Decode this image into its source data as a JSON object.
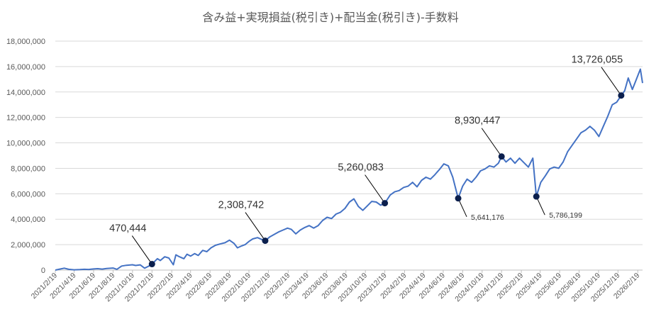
{
  "colors": {
    "series": "#4472c4",
    "marker": "#0b1f4d",
    "grid": "#d9d9d9",
    "axis_text": "#595959",
    "background": "#ffffff"
  },
  "chart_data": {
    "type": "line",
    "title": "含み益+実現損益(税引き)+配当金(税引き)-手数料",
    "xlabel": "",
    "ylabel": "",
    "ylim": [
      0,
      18000000
    ],
    "y_ticks": [
      "0",
      "2,000,000",
      "4,000,000",
      "6,000,000",
      "8,000,000",
      "10,000,000",
      "12,000,000",
      "14,000,000",
      "16,000,000",
      "18,000,000"
    ],
    "x_ticks": [
      "2021/2/19",
      "2021/4/19",
      "2021/6/19",
      "2021/8/19",
      "2021/10/19",
      "2021/12/19",
      "2022/2/19",
      "2022/4/19",
      "2022/6/19",
      "2022/8/19",
      "2022/10/19",
      "2022/12/19",
      "2023/2/19",
      "2023/4/19",
      "2023/6/19",
      "2023/8/19",
      "2023/10/19",
      "2023/12/19",
      "2024/2/19",
      "2024/4/19",
      "2024/6/19",
      "2024/8/19",
      "2024/10/19",
      "2024/12/19",
      "2025/2/19",
      "2025/4/19",
      "2025/6/19",
      "2025/8/19",
      "2025/10/19",
      "2025/12/19",
      "2026/2/19"
    ],
    "grid": true,
    "legend": "none",
    "series": [
      {
        "points": [
          [
            "2021-02-19",
            0
          ],
          [
            "2021-03-05",
            80000
          ],
          [
            "2021-03-19",
            150000
          ],
          [
            "2021-04-02",
            60000
          ],
          [
            "2021-04-19",
            20000
          ],
          [
            "2021-05-07",
            40000
          ],
          [
            "2021-05-21",
            60000
          ],
          [
            "2021-06-04",
            50000
          ],
          [
            "2021-06-19",
            90000
          ],
          [
            "2021-07-02",
            110000
          ],
          [
            "2021-07-16",
            80000
          ],
          [
            "2021-07-30",
            130000
          ],
          [
            "2021-08-19",
            160000
          ],
          [
            "2021-08-31",
            60000
          ],
          [
            "2021-09-15",
            320000
          ],
          [
            "2021-09-30",
            380000
          ],
          [
            "2021-10-19",
            420000
          ],
          [
            "2021-10-29",
            360000
          ],
          [
            "2021-11-12",
            410000
          ],
          [
            "2021-11-26",
            150000
          ],
          [
            "2021-12-08",
            300000
          ],
          [
            "2021-12-19",
            470444
          ],
          [
            "2022-01-05",
            900000
          ],
          [
            "2022-01-14",
            750000
          ],
          [
            "2022-01-28",
            1050000
          ],
          [
            "2022-02-10",
            950000
          ],
          [
            "2022-02-24",
            420000
          ],
          [
            "2022-03-04",
            1200000
          ],
          [
            "2022-03-15",
            1050000
          ],
          [
            "2022-03-29",
            900000
          ],
          [
            "2022-04-08",
            1250000
          ],
          [
            "2022-04-19",
            1100000
          ],
          [
            "2022-05-02",
            1300000
          ],
          [
            "2022-05-13",
            1150000
          ],
          [
            "2022-05-27",
            1550000
          ],
          [
            "2022-06-09",
            1450000
          ],
          [
            "2022-06-22",
            1750000
          ],
          [
            "2022-07-06",
            1950000
          ],
          [
            "2022-07-20",
            2050000
          ],
          [
            "2022-08-05",
            2150000
          ],
          [
            "2022-08-19",
            2350000
          ],
          [
            "2022-09-02",
            2100000
          ],
          [
            "2022-09-13",
            1750000
          ],
          [
            "2022-09-26",
            1900000
          ],
          [
            "2022-10-07",
            2000000
          ],
          [
            "2022-10-19",
            2250000
          ],
          [
            "2022-10-31",
            2450000
          ],
          [
            "2022-11-15",
            2550000
          ],
          [
            "2022-11-29",
            2400000
          ],
          [
            "2022-12-09",
            2308742
          ],
          [
            "2022-12-23",
            2600000
          ],
          [
            "2023-01-06",
            2800000
          ],
          [
            "2023-01-20",
            3000000
          ],
          [
            "2023-02-03",
            3150000
          ],
          [
            "2023-02-17",
            3300000
          ],
          [
            "2023-03-01",
            3200000
          ],
          [
            "2023-03-15",
            2850000
          ],
          [
            "2023-03-29",
            3150000
          ],
          [
            "2023-04-12",
            3350000
          ],
          [
            "2023-04-26",
            3500000
          ],
          [
            "2023-05-10",
            3300000
          ],
          [
            "2023-05-24",
            3500000
          ],
          [
            "2023-06-07",
            3900000
          ],
          [
            "2023-06-21",
            4150000
          ],
          [
            "2023-07-05",
            4050000
          ],
          [
            "2023-07-19",
            4400000
          ],
          [
            "2023-08-02",
            4550000
          ],
          [
            "2023-08-16",
            4850000
          ],
          [
            "2023-08-30",
            5350000
          ],
          [
            "2023-09-13",
            5600000
          ],
          [
            "2023-09-27",
            5000000
          ],
          [
            "2023-10-11",
            4700000
          ],
          [
            "2023-10-25",
            5050000
          ],
          [
            "2023-11-08",
            5400000
          ],
          [
            "2023-11-22",
            5350000
          ],
          [
            "2023-12-06",
            5100000
          ],
          [
            "2023-12-19",
            5260083
          ],
          [
            "2024-01-05",
            5900000
          ],
          [
            "2024-01-19",
            6150000
          ],
          [
            "2024-02-02",
            6250000
          ],
          [
            "2024-02-16",
            6500000
          ],
          [
            "2024-03-01",
            6600000
          ],
          [
            "2024-03-15",
            6900000
          ],
          [
            "2024-03-29",
            6550000
          ],
          [
            "2024-04-12",
            7050000
          ],
          [
            "2024-04-26",
            7300000
          ],
          [
            "2024-05-10",
            7150000
          ],
          [
            "2024-05-24",
            7500000
          ],
          [
            "2024-06-07",
            7900000
          ],
          [
            "2024-06-21",
            8350000
          ],
          [
            "2024-07-05",
            8200000
          ],
          [
            "2024-07-19",
            7300000
          ],
          [
            "2024-08-05",
            5641176
          ],
          [
            "2024-08-19",
            6600000
          ],
          [
            "2024-09-02",
            7150000
          ],
          [
            "2024-09-16",
            6900000
          ],
          [
            "2024-09-30",
            7300000
          ],
          [
            "2024-10-14",
            7800000
          ],
          [
            "2024-10-28",
            7950000
          ],
          [
            "2024-11-11",
            8200000
          ],
          [
            "2024-11-25",
            8100000
          ],
          [
            "2024-12-09",
            8400000
          ],
          [
            "2024-12-19",
            8930447
          ],
          [
            "2025-01-02",
            8500000
          ],
          [
            "2025-01-16",
            8800000
          ],
          [
            "2025-01-30",
            8400000
          ],
          [
            "2025-02-13",
            8800000
          ],
          [
            "2025-02-27",
            8450000
          ],
          [
            "2025-03-13",
            8100000
          ],
          [
            "2025-03-27",
            8800000
          ],
          [
            "2025-04-07",
            5786199
          ],
          [
            "2025-04-21",
            6900000
          ],
          [
            "2025-05-05",
            7400000
          ],
          [
            "2025-05-19",
            7950000
          ],
          [
            "2025-06-02",
            8100000
          ],
          [
            "2025-06-16",
            8000000
          ],
          [
            "2025-06-30",
            8500000
          ],
          [
            "2025-07-14",
            9300000
          ],
          [
            "2025-07-28",
            9800000
          ],
          [
            "2025-08-11",
            10300000
          ],
          [
            "2025-08-25",
            10800000
          ],
          [
            "2025-09-08",
            11000000
          ],
          [
            "2025-09-22",
            11300000
          ],
          [
            "2025-10-06",
            11000000
          ],
          [
            "2025-10-20",
            10500000
          ],
          [
            "2025-11-03",
            11300000
          ],
          [
            "2025-11-17",
            12100000
          ],
          [
            "2025-12-01",
            13000000
          ],
          [
            "2025-12-15",
            13200000
          ],
          [
            "2025-12-29",
            13726055
          ],
          [
            "2026-01-09",
            14100000
          ],
          [
            "2026-01-20",
            15100000
          ],
          [
            "2026-02-02",
            14200000
          ],
          [
            "2026-02-13",
            14900000
          ],
          [
            "2026-02-27",
            15800000
          ],
          [
            "2026-03-06",
            14700000
          ]
        ]
      }
    ],
    "annotations": [
      {
        "x": "2021-12-19",
        "y": 470444,
        "label": "470,444",
        "size": "large",
        "side": "above-left"
      },
      {
        "x": "2022-12-09",
        "y": 2308742,
        "label": "2,308,742",
        "size": "large",
        "side": "above-left"
      },
      {
        "x": "2023-12-19",
        "y": 5260083,
        "label": "5,260,083",
        "size": "large",
        "side": "above-left"
      },
      {
        "x": "2024-08-05",
        "y": 5641176,
        "label": "5,641,176",
        "size": "small",
        "side": "below-right"
      },
      {
        "x": "2024-12-19",
        "y": 8930447,
        "label": "8,930,447",
        "size": "large",
        "side": "above-left"
      },
      {
        "x": "2025-04-07",
        "y": 5786199,
        "label": "5,786,199",
        "size": "small",
        "side": "below-right"
      },
      {
        "x": "2025-12-29",
        "y": 13726055,
        "label": "13,726,055",
        "size": "large",
        "side": "above-left"
      }
    ]
  }
}
